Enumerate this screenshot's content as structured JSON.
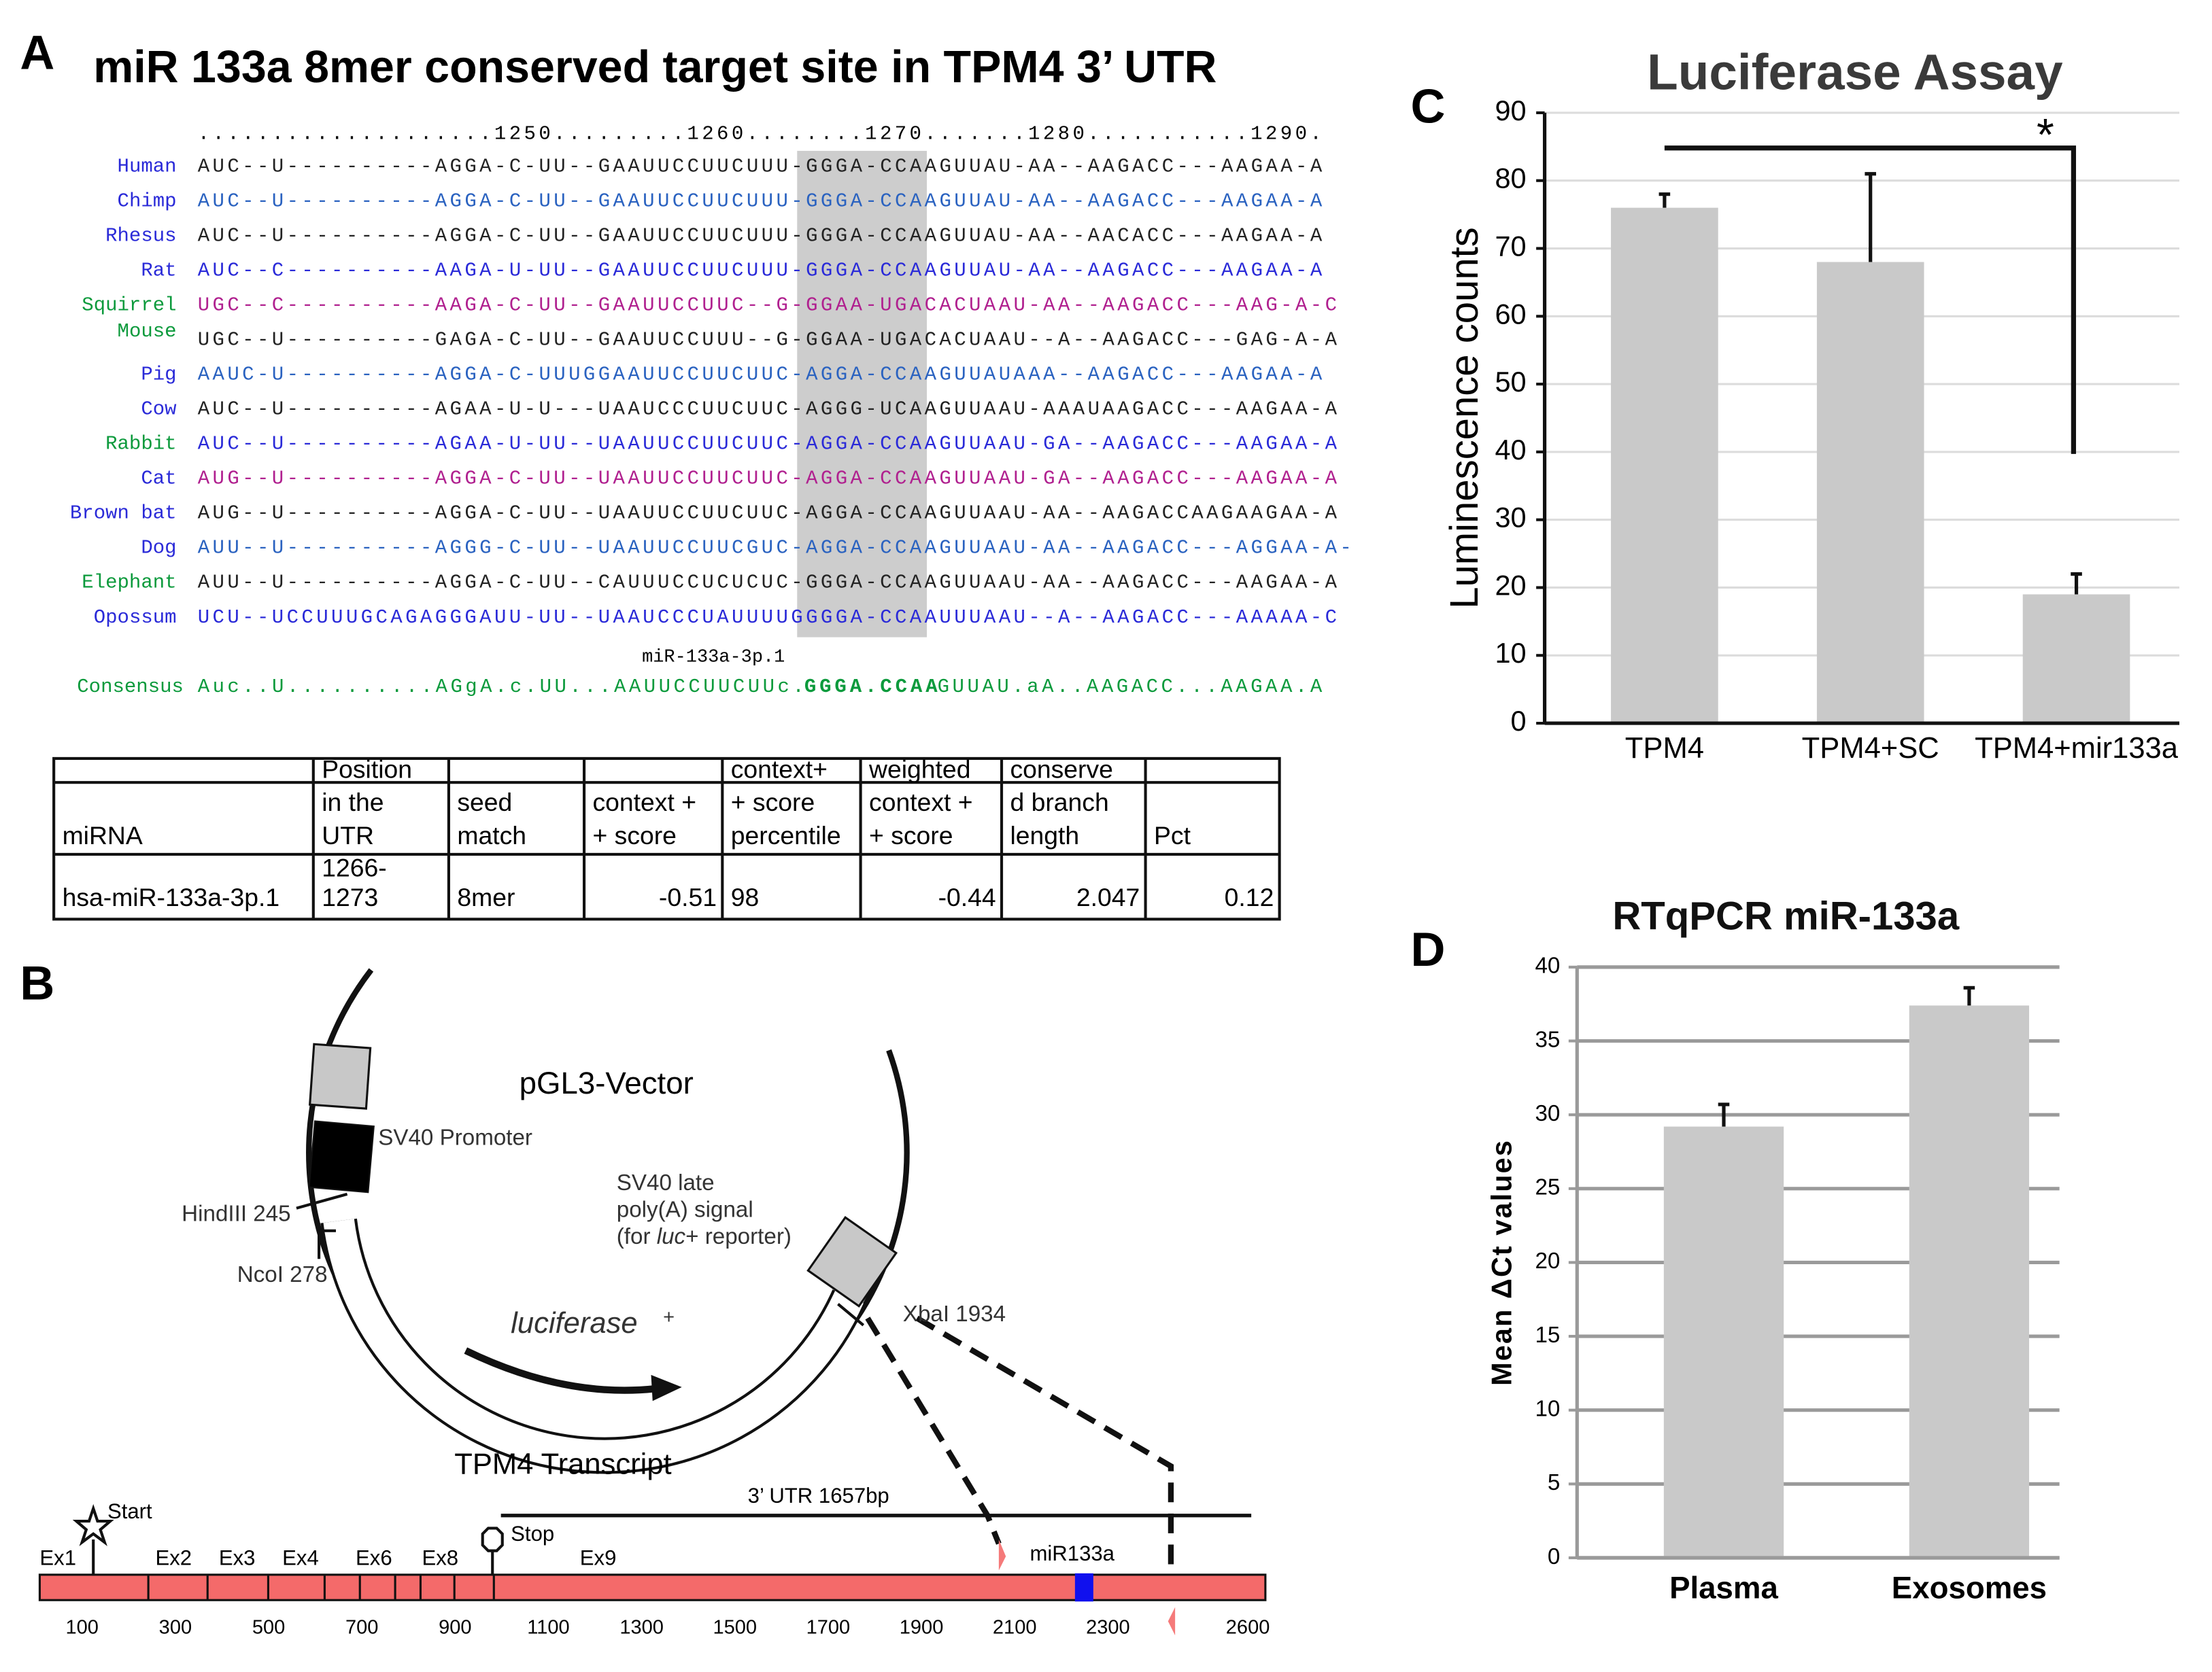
{
  "panels": [
    "A",
    "B",
    "C",
    "D"
  ],
  "alignment": {
    "title": "miR 133a 8mer conserved target site in TPM4 3’ UTR",
    "ruler": "....................1250.........1260........1270.......1280...........1290.",
    "rows": [
      {
        "name": "Human",
        "seq": "AUC--U----------AGGA-C-UU--GAAUUCCUUCUUU-GGGA-CCAAGUUAU-AA--AAGACC---AAGAA-A",
        "name_color": "#2a2ad8",
        "seq_color": "#222222"
      },
      {
        "name": "Chimp",
        "seq": "AUC--U----------AGGA-C-UU--GAAUUCCUUCUUU-GGGA-CCAAGUUAU-AA--AAGACC---AAGAA-A",
        "name_color": "#2a2ad8",
        "seq_color": "#2a62c0"
      },
      {
        "name": "Rhesus",
        "seq": "AUC--U----------AGGA-C-UU--GAAUUCCUUCUUU-GGGA-CCAAGUUAU-AA--AACACC---AAGAA-A",
        "name_color": "#2a2ad8",
        "seq_color": "#222222"
      },
      {
        "name": "Rat",
        "seq": "AUC--C----------AAGA-U-UU--GAAUUCCUUCUUU-GGGA-CCAAGUUAU-AA--AAGACC---AAGAA-A",
        "name_color": "#2a2ad8",
        "seq_color": "#2a2ad8"
      },
      {
        "name": "Squirrel",
        "seq": "UGC--C----------AAGA-C-UU--GAAUUCCUUC--G-GGAA-UGACACUAAU-AA--AAGACC---AAG-A-C",
        "name_color": "#0c9a3c",
        "seq_color": "#b0208f"
      },
      {
        "name": "Mouse",
        "seq": "UGC--U----------GAGA-C-UU--GAAUUCCUUU--G-GGAA-UGACACUAAU--A--AAGACC---GAG-A-A",
        "name_color": "#0c9a3c",
        "seq_color": "#222222"
      },
      {
        "name": "Pig",
        "seq": "AAUC-U----------AGGA-C-UUUGGAAUUCCUUCUUC-AGGA-CCAAGUUAUAAA--AAGACC---AAGAA-A",
        "name_color": "#2a2ad8",
        "seq_color": "#2a62c0"
      },
      {
        "name": "Cow",
        "seq": "AUC--U----------AGAA-U-U---UAAUCCCUUCUUC-AGGG-UCAAGUUAAU-AAAUAAGACC---AAGAA-A",
        "name_color": "#2a2ad8",
        "seq_color": "#222222"
      },
      {
        "name": "Rabbit",
        "seq": "AUC--U----------AGAA-U-UU--UAAUUCCUUCUUC-AGGA-CCAAGUUAAU-GA--AAGACC---AAGAA-A",
        "name_color": "#0c9a3c",
        "seq_color": "#2a2ad8"
      },
      {
        "name": "Cat",
        "seq": "AUG--U----------AGGA-C-UU--UAAUUCCUUCUUC-AGGA-CCAAGUUAAU-GA--AAGACC---AAGAA-A",
        "name_color": "#2a2ad8",
        "seq_color": "#b0208f"
      },
      {
        "name": "Brown bat",
        "seq": "AUG--U----------AGGA-C-UU--UAAUUCCUUCUUC-AGGA-CCAAGUUAAU-AA--AAGACCAAGAAGAA-A",
        "name_color": "#2a2ad8",
        "seq_color": "#222222"
      },
      {
        "name": "Dog",
        "seq": "AUU--U----------AGGG-C-UU--UAAUUCCUUCGUC-AGGA-CCAAGUUAAU-AA--AAGACC---AGGAA-A-",
        "name_color": "#2a2ad8",
        "seq_color": "#2a62c0"
      },
      {
        "name": "Elephant",
        "seq": "AUU--U----------AGGA-C-UU--CAUUUCCUCUCUC-GGGA-CCAAGUUAAU-AA--AAGACC---AAGAA-A",
        "name_color": "#0c9a3c",
        "seq_color": "#222222"
      },
      {
        "name": "Opossum",
        "seq": "UCU--UCCUUUGCAGAGGGAUU-UU--UAAUCCCUAUUUUGGGGA-CCAAUUUAAU--A--AAGACC---AAAAA-C",
        "name_color": "#2a2ad8",
        "seq_color": "#2a2ad8"
      }
    ],
    "site_label": "miR-133a-3p.1",
    "consensus": {
      "label": "Consensus",
      "before": "Auc..U..........AGgA.c.UU...AAUUCCUUCUUc.",
      "seed": "GGGA.CCAA",
      "after": "GUUAU.aA..AAGACC...AAGAA.A",
      "color": "#0c9a3c"
    }
  },
  "table": {
    "header": [
      [
        "miRNA"
      ],
      [
        "Position",
        "in the",
        "UTR"
      ],
      [
        "seed",
        "match"
      ],
      [
        "context +",
        "+ score"
      ],
      [
        "context+",
        "+ score",
        "percentile"
      ],
      [
        "weighted",
        "context +",
        "+ score"
      ],
      [
        "conserve",
        "d branch",
        "length"
      ],
      [
        "Pct"
      ]
    ],
    "rows": [
      [
        [
          "hsa-miR-133a-3p.1"
        ],
        [
          "1266-",
          "1273"
        ],
        [
          "8mer"
        ],
        [
          -0.51
        ],
        [
          98
        ],
        [
          -0.44
        ],
        [
          2.047
        ],
        [
          0.12
        ]
      ]
    ],
    "align": [
      "left",
      "left",
      "left",
      "right",
      "left",
      "right",
      "right",
      "right"
    ]
  },
  "plasmid": {
    "name": "pGL3-Vector",
    "promoter": "SV40 Promoter",
    "hindiii": "HindIII 245",
    "ncoi": "NcoI 278",
    "polya": [
      "SV40 late",
      "poly(A) signal"
    ],
    "polya_note": [
      "(for ",
      "luc",
      "+ reporter)"
    ],
    "gene": "luciferase",
    "gene_sup": "+",
    "xbai": "XbaI 1934"
  },
  "transcript": {
    "title": "TPM4 Transcript",
    "utr": "3’ UTR 1657bp",
    "start": "Start",
    "stop": "Stop",
    "exons": [
      "Ex1",
      "Ex2",
      "Ex3",
      "Ex4",
      "Ex6",
      "Ex8",
      "Ex9"
    ],
    "mirna": "miR133a",
    "ticks": [
      100,
      300,
      500,
      700,
      900,
      1100,
      1300,
      1500,
      1700,
      1900,
      2100,
      2300,
      2600
    ]
  },
  "chart_data": [
    {
      "type": "bar",
      "title": "Luciferase Assay",
      "ylabel": "Luminescence counts",
      "categories": [
        "TPM4",
        "TPM4+SC",
        "TPM4+mir133a"
      ],
      "values": [
        76,
        68,
        19
      ],
      "errors": [
        2,
        13,
        3
      ],
      "color": "#c9c9c9",
      "ylim": [
        0,
        90
      ],
      "yticks": [
        0,
        10,
        20,
        30,
        40,
        50,
        60,
        70,
        80,
        90
      ],
      "grid": true,
      "annotation": "*"
    },
    {
      "type": "bar",
      "title": "RTqPCR miR-133a",
      "ylabel": "Mean ΔCt values",
      "categories": [
        "Plasma",
        "Exosomes"
      ],
      "values": [
        29.2,
        37.4
      ],
      "errors": [
        1.5,
        1.2
      ],
      "color": "#c9c9c9",
      "ylim": [
        0,
        40
      ],
      "yticks": [
        0,
        5,
        10,
        15,
        20,
        25,
        30,
        35,
        40
      ],
      "grid": true
    }
  ]
}
